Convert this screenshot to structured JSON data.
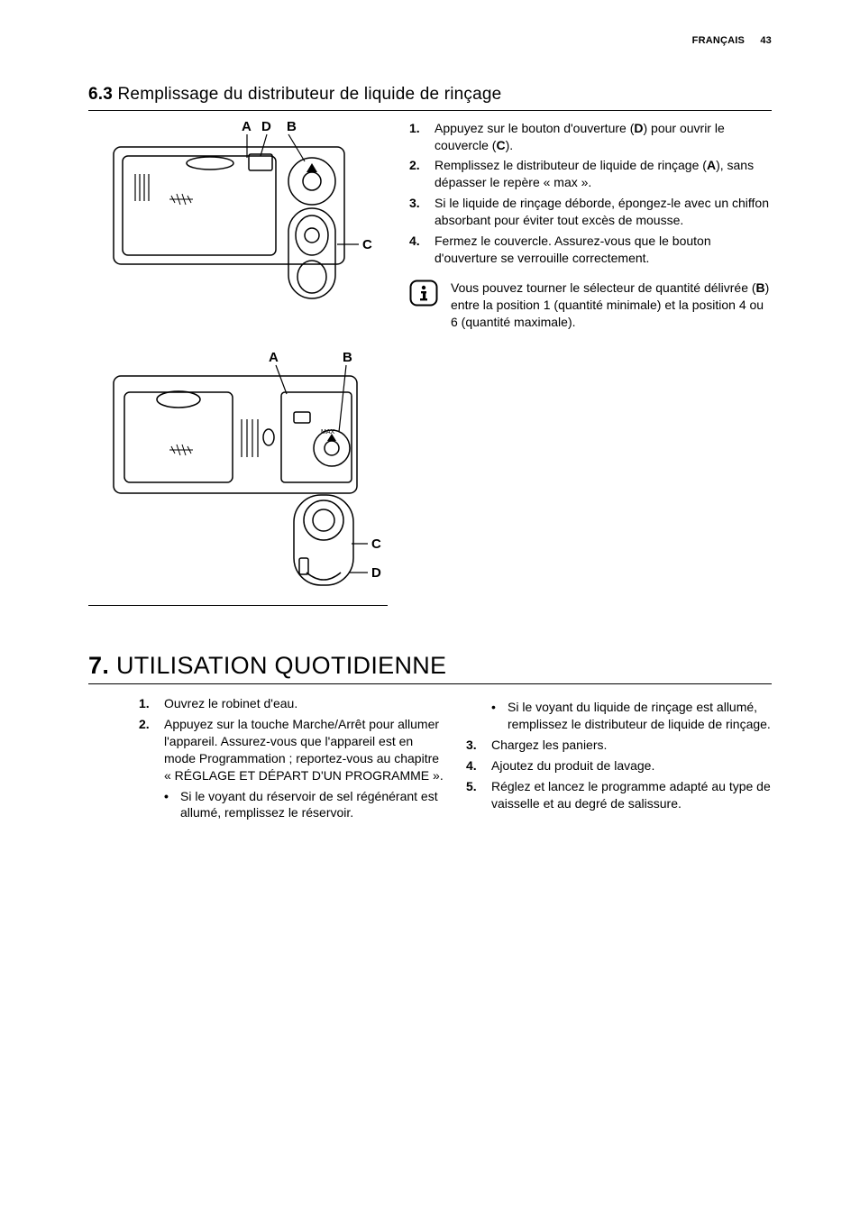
{
  "header": {
    "lang": "FRANÇAIS",
    "pagenum": "43"
  },
  "section63": {
    "num": "6.3",
    "title": "Remplissage du distributeur de liquide de rinçage",
    "steps": [
      "Appuyez sur le bouton d'ouverture (<b>D</b>) pour ouvrir le couvercle (<b>C</b>).",
      "Remplissez le distributeur de liquide de rinçage (<b>A</b>), sans dépasser le repère « max ».",
      "Si le liquide de rinçage déborde, épongez-le avec un chiffon absorbant pour éviter tout excès de mousse.",
      "Fermez le couvercle. Assurez-vous que le bouton d'ouverture se verrouille correctement."
    ],
    "note": "Vous pouvez tourner le sélecteur de quantité délivrée (<b>B</b>) entre la position 1 (quantité minimale) et la position 4 ou 6 (quantité maximale).",
    "fig1_labels": {
      "A": "A",
      "D": "D",
      "B": "B",
      "C": "C"
    },
    "fig2_labels": {
      "A": "A",
      "B": "B",
      "C": "C",
      "D": "D"
    }
  },
  "section7": {
    "num": "7.",
    "title": "UTILISATION QUOTIDIENNE",
    "left_steps": [
      {
        "n": "1.",
        "t": "Ouvrez le robinet d'eau."
      },
      {
        "n": "2.",
        "t": "Appuyez sur la touche Marche/Arrêt pour allumer l'appareil. Assurez-vous que l'appareil est en mode Programmation ; reportez-vous au chapitre « RÉGLAGE ET DÉPART D'UN PROGRAMME »."
      }
    ],
    "left_sub": [
      "Si le voyant du réservoir de sel régénérant est allumé, remplissez le réservoir."
    ],
    "right_sub": [
      "Si le voyant du liquide de rinçage est allumé, remplissez le distributeur de liquide de rinçage."
    ],
    "right_steps": [
      {
        "n": "3.",
        "t": "Chargez les paniers."
      },
      {
        "n": "4.",
        "t": "Ajoutez du produit de lavage."
      },
      {
        "n": "5.",
        "t": "Réglez et lancez le programme adapté au type de vaisselle et au degré de salissure."
      }
    ]
  }
}
